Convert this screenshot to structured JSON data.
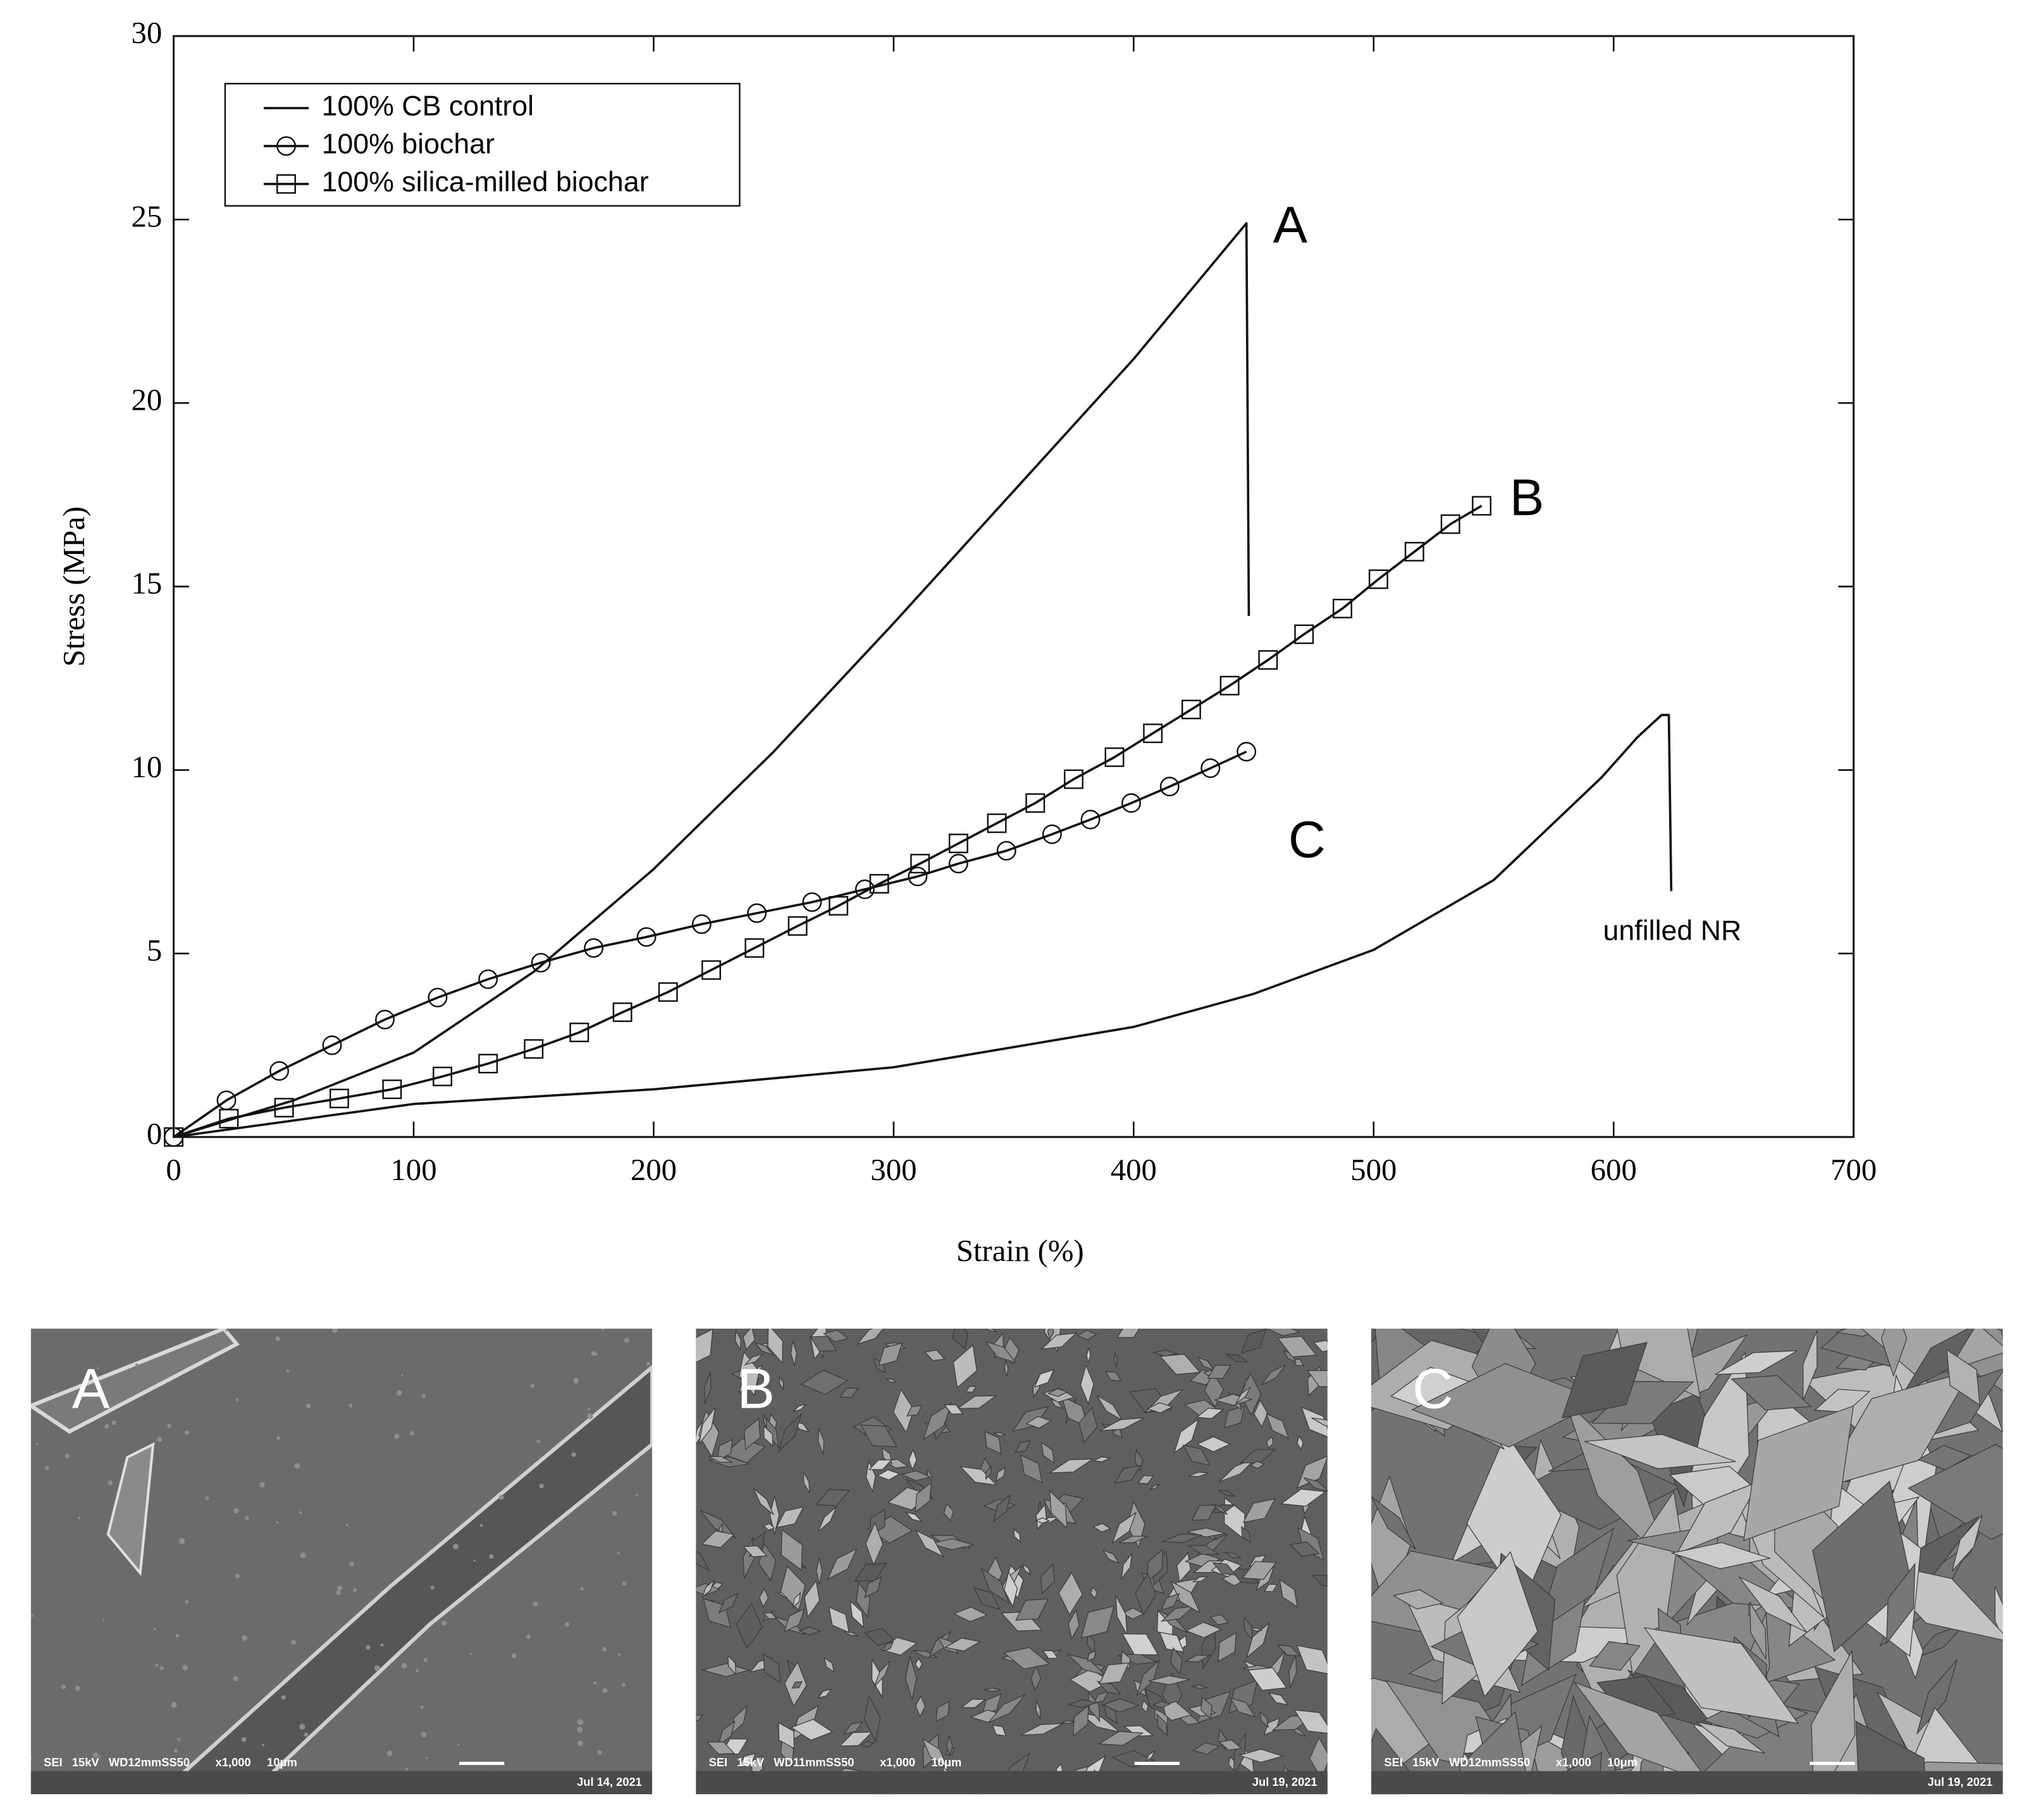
{
  "chart_data": {
    "type": "line",
    "x_label": "Strain (%)",
    "y_label": "Stress (MPa)",
    "xlim": [
      0,
      700
    ],
    "xticks": [
      0,
      100,
      200,
      300,
      400,
      500,
      600,
      700
    ],
    "ylim": [
      0,
      30
    ],
    "yticks": [
      0,
      5,
      10,
      15,
      20,
      25,
      30
    ],
    "legend": "upper left",
    "color": "#111111",
    "series": [
      {
        "name": "100% CB control",
        "marker": "none",
        "legend": true,
        "x": [
          0,
          50,
          100,
          150,
          200,
          250,
          300,
          350,
          400,
          447,
          448
        ],
        "values": [
          0,
          1.0,
          2.3,
          4.5,
          7.3,
          10.5,
          14.0,
          17.6,
          21.2,
          24.9,
          14.2
        ]
      },
      {
        "name": "100% biochar",
        "marker": "circle",
        "legend": true,
        "x": [
          0,
          22,
          44,
          66,
          88,
          110,
          131,
          153,
          175,
          197,
          220,
          243,
          266,
          288,
          310,
          327,
          347,
          366,
          382,
          399,
          415,
          432,
          447
        ],
        "values": [
          0,
          1.0,
          1.8,
          2.5,
          3.2,
          3.8,
          4.3,
          4.75,
          5.15,
          5.45,
          5.8,
          6.1,
          6.4,
          6.75,
          7.1,
          7.45,
          7.8,
          8.25,
          8.65,
          9.1,
          9.55,
          10.05,
          10.5
        ]
      },
      {
        "name": "100% silica-milled biochar",
        "marker": "square",
        "legend": true,
        "x": [
          0,
          23,
          46,
          69,
          91,
          112,
          131,
          150,
          169,
          187,
          206,
          224,
          242,
          260,
          277,
          294,
          311,
          327,
          343,
          359,
          375,
          392,
          408,
          424,
          440,
          456,
          471,
          487,
          502,
          517,
          532,
          545
        ],
        "values": [
          0,
          0.5,
          0.8,
          1.05,
          1.3,
          1.65,
          2.0,
          2.4,
          2.85,
          3.4,
          3.95,
          4.55,
          5.15,
          5.75,
          6.3,
          6.9,
          7.45,
          8.0,
          8.55,
          9.1,
          9.75,
          10.35,
          11.0,
          11.65,
          12.3,
          13.0,
          13.7,
          14.4,
          15.2,
          15.95,
          16.7,
          17.2
        ]
      },
      {
        "name": "unfilled NR",
        "marker": "none",
        "legend": false,
        "x": [
          0,
          100,
          200,
          300,
          400,
          450,
          500,
          550,
          595,
          610,
          620,
          623,
          624
        ],
        "values": [
          0,
          0.9,
          1.3,
          1.9,
          3.0,
          3.9,
          5.1,
          7.0,
          9.8,
          10.9,
          11.5,
          11.5,
          6.7
        ]
      }
    ],
    "annotations": [
      "A",
      "B",
      "C"
    ]
  },
  "images": [
    {
      "label": "A",
      "caption": "SEI   15kV   WD12mmSS50        x1,000     10μm",
      "date": "Jul 14, 2021"
    },
    {
      "label": "B",
      "caption": "SEI   15kV   WD11mmSS50        x1,000     10μm",
      "date": "Jul 19, 2021"
    },
    {
      "label": "C",
      "caption": "SEI   15kV   WD12mmSS50        x1,000     10μm",
      "date": "Jul 19, 2021"
    }
  ]
}
